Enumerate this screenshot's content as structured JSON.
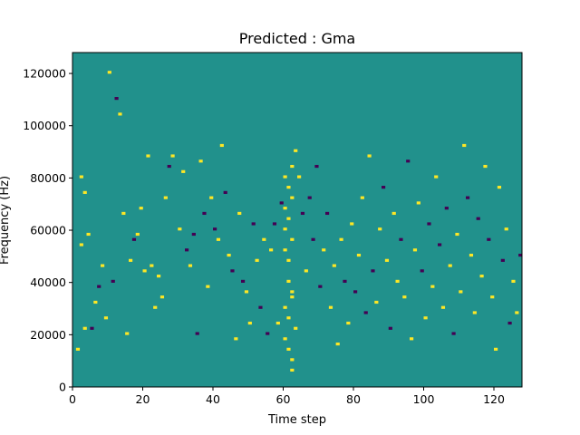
{
  "chart_data": {
    "type": "heatmap",
    "title": "Predicted : Gma",
    "xlabel": "Time step",
    "ylabel": "Frequency (Hz)",
    "xlim": [
      0,
      128
    ],
    "ylim": [
      0,
      128000
    ],
    "xticks": [
      0,
      20,
      40,
      60,
      80,
      100,
      120
    ],
    "yticks": [
      0,
      20000,
      40000,
      60000,
      80000,
      100000,
      120000
    ],
    "xtick_labels": [
      "0",
      "20",
      "40",
      "60",
      "80",
      "100",
      "120"
    ],
    "ytick_labels": [
      "0",
      "20000",
      "40000",
      "60000",
      "80000",
      "100000",
      "120000"
    ],
    "colormap": "viridis",
    "levels": {
      "background": {
        "value": 0,
        "color": "#21918c"
      },
      "positive": {
        "value": 1,
        "color": "#fde725"
      },
      "negative": {
        "value": -1,
        "color": "#440154"
      }
    },
    "n_time_steps": 128,
    "n_freq_bins": 128,
    "bin_height_hz": 1000,
    "cells": [
      [
        2,
        80000,
        1
      ],
      [
        3,
        74000,
        1
      ],
      [
        4,
        58000,
        1
      ],
      [
        2,
        54000,
        1
      ],
      [
        3,
        22000,
        1
      ],
      [
        1,
        14000,
        1
      ],
      [
        5,
        22000,
        -1
      ],
      [
        6,
        32000,
        1
      ],
      [
        7,
        38000,
        -1
      ],
      [
        8,
        46000,
        1
      ],
      [
        9,
        26000,
        1
      ],
      [
        10,
        120000,
        1
      ],
      [
        11,
        40000,
        -1
      ],
      [
        12,
        110000,
        -1
      ],
      [
        13,
        104000,
        1
      ],
      [
        14,
        66000,
        1
      ],
      [
        15,
        20000,
        1
      ],
      [
        16,
        48000,
        1
      ],
      [
        17,
        56000,
        -1
      ],
      [
        18,
        58000,
        1
      ],
      [
        19,
        68000,
        1
      ],
      [
        20,
        44000,
        1
      ],
      [
        21,
        88000,
        1
      ],
      [
        22,
        46000,
        1
      ],
      [
        23,
        30000,
        1
      ],
      [
        24,
        42000,
        1
      ],
      [
        25,
        34000,
        1
      ],
      [
        26,
        72000,
        1
      ],
      [
        27,
        84000,
        -1
      ],
      [
        28,
        88000,
        1
      ],
      [
        30,
        60000,
        1
      ],
      [
        31,
        82000,
        1
      ],
      [
        32,
        52000,
        -1
      ],
      [
        33,
        46000,
        1
      ],
      [
        34,
        58000,
        -1
      ],
      [
        35,
        20000,
        -1
      ],
      [
        36,
        86000,
        1
      ],
      [
        37,
        66000,
        -1
      ],
      [
        38,
        38000,
        1
      ],
      [
        39,
        72000,
        1
      ],
      [
        40,
        60000,
        -1
      ],
      [
        41,
        56000,
        1
      ],
      [
        42,
        92000,
        1
      ],
      [
        43,
        74000,
        -1
      ],
      [
        44,
        50000,
        1
      ],
      [
        45,
        44000,
        -1
      ],
      [
        46,
        18000,
        1
      ],
      [
        47,
        66000,
        1
      ],
      [
        48,
        40000,
        -1
      ],
      [
        49,
        36000,
        1
      ],
      [
        50,
        24000,
        1
      ],
      [
        51,
        62000,
        -1
      ],
      [
        52,
        48000,
        1
      ],
      [
        53,
        30000,
        -1
      ],
      [
        54,
        56000,
        1
      ],
      [
        55,
        20000,
        -1
      ],
      [
        56,
        52000,
        1
      ],
      [
        57,
        62000,
        -1
      ],
      [
        58,
        24000,
        1
      ],
      [
        59,
        70000,
        -1
      ],
      [
        60,
        60000,
        1
      ],
      [
        61,
        48000,
        1
      ],
      [
        62,
        36000,
        1
      ],
      [
        63,
        22000,
        1
      ],
      [
        64,
        80000,
        1
      ],
      [
        65,
        66000,
        -1
      ],
      [
        66,
        44000,
        1
      ],
      [
        67,
        72000,
        -1
      ],
      [
        68,
        56000,
        -1
      ],
      [
        69,
        84000,
        -1
      ],
      [
        70,
        38000,
        -1
      ],
      [
        71,
        52000,
        1
      ],
      [
        72,
        66000,
        -1
      ],
      [
        73,
        30000,
        1
      ],
      [
        74,
        46000,
        1
      ],
      [
        75,
        16000,
        1
      ],
      [
        76,
        56000,
        1
      ],
      [
        77,
        40000,
        -1
      ],
      [
        78,
        24000,
        1
      ],
      [
        79,
        62000,
        1
      ],
      [
        80,
        36000,
        -1
      ],
      [
        81,
        50000,
        1
      ],
      [
        82,
        72000,
        1
      ],
      [
        83,
        28000,
        -1
      ],
      [
        84,
        88000,
        1
      ],
      [
        85,
        44000,
        -1
      ],
      [
        86,
        32000,
        1
      ],
      [
        87,
        60000,
        1
      ],
      [
        88,
        76000,
        -1
      ],
      [
        89,
        48000,
        1
      ],
      [
        90,
        22000,
        -1
      ],
      [
        91,
        66000,
        1
      ],
      [
        92,
        40000,
        1
      ],
      [
        93,
        56000,
        -1
      ],
      [
        94,
        34000,
        1
      ],
      [
        95,
        86000,
        -1
      ],
      [
        96,
        18000,
        1
      ],
      [
        97,
        52000,
        1
      ],
      [
        98,
        70000,
        1
      ],
      [
        99,
        44000,
        -1
      ],
      [
        100,
        26000,
        1
      ],
      [
        101,
        62000,
        -1
      ],
      [
        102,
        38000,
        1
      ],
      [
        103,
        80000,
        1
      ],
      [
        104,
        54000,
        -1
      ],
      [
        105,
        30000,
        1
      ],
      [
        106,
        68000,
        -1
      ],
      [
        107,
        46000,
        1
      ],
      [
        108,
        20000,
        -1
      ],
      [
        109,
        58000,
        1
      ],
      [
        110,
        36000,
        1
      ],
      [
        111,
        92000,
        1
      ],
      [
        112,
        72000,
        -1
      ],
      [
        113,
        50000,
        1
      ],
      [
        114,
        28000,
        1
      ],
      [
        115,
        64000,
        -1
      ],
      [
        116,
        42000,
        1
      ],
      [
        117,
        84000,
        1
      ],
      [
        118,
        56000,
        -1
      ],
      [
        119,
        34000,
        1
      ],
      [
        120,
        14000,
        1
      ],
      [
        121,
        76000,
        1
      ],
      [
        122,
        48000,
        -1
      ],
      [
        123,
        60000,
        1
      ],
      [
        124,
        24000,
        -1
      ],
      [
        125,
        40000,
        1
      ],
      [
        126,
        28000,
        1
      ],
      [
        127,
        50000,
        -1
      ],
      [
        62,
        6000,
        1
      ],
      [
        62,
        10000,
        1
      ],
      [
        61,
        14000,
        1
      ],
      [
        60,
        18000,
        1
      ],
      [
        61,
        26000,
        1
      ],
      [
        60,
        30000,
        1
      ],
      [
        62,
        34000,
        1
      ],
      [
        61,
        40000,
        1
      ],
      [
        60,
        52000,
        1
      ],
      [
        62,
        56000,
        1
      ],
      [
        61,
        64000,
        1
      ],
      [
        60,
        68000,
        1
      ],
      [
        62,
        72000,
        1
      ],
      [
        61,
        76000,
        1
      ],
      [
        60,
        80000,
        1
      ],
      [
        62,
        84000,
        1
      ],
      [
        63,
        90000,
        1
      ]
    ]
  }
}
